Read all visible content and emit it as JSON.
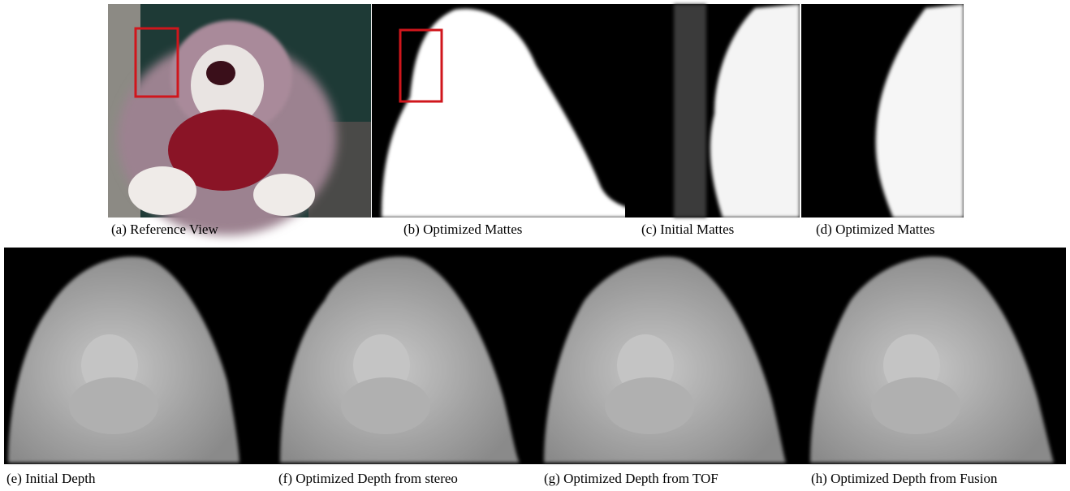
{
  "figure": {
    "captions": [
      "(a) Reference View",
      "(b) Optimized Mattes",
      "(c) Initial Mattes",
      "(d) Optimized Mattes",
      "(e) Initial Depth",
      "(f) Optimized Depth from stereo",
      "(g) Optimized Depth from TOF",
      "(h) Optimized Depth from Fusion"
    ]
  }
}
